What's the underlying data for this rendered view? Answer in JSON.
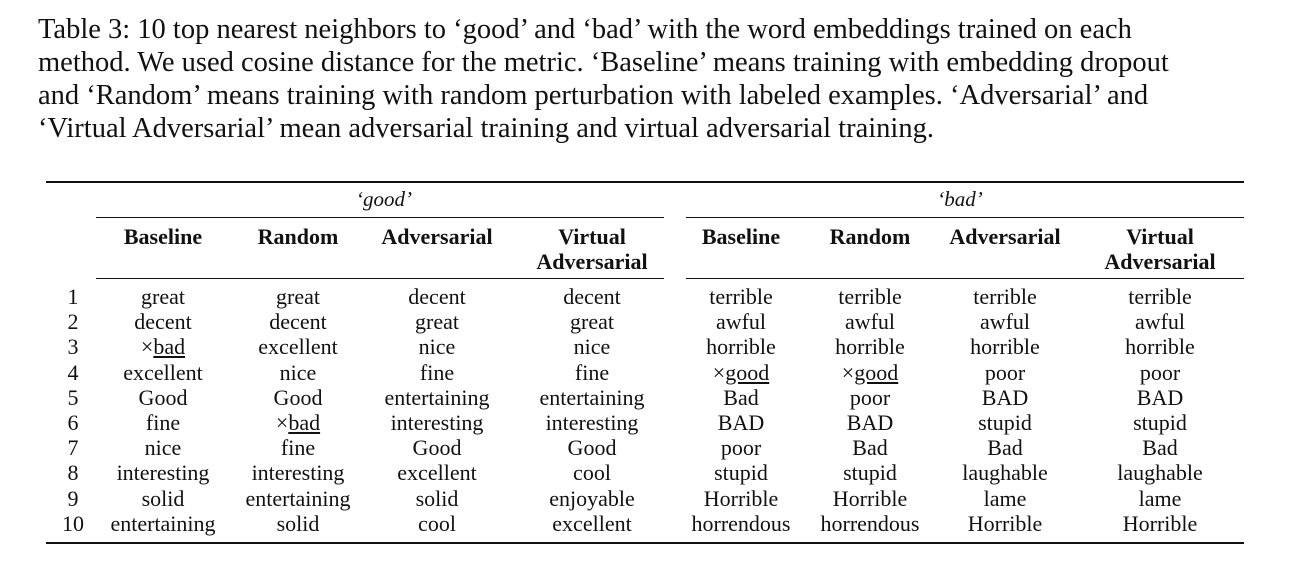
{
  "caption": {
    "line1": "Table 3: 10 top nearest neighbors to ‘good’ and ‘bad’ with the word embeddings trained on each",
    "line2": "method. We used cosine distance for the metric. ‘Baseline’ means training with embedding dropout",
    "line3": "and ‘Random’ means training with random perturbation with labeled examples. ‘Adversarial’ and",
    "line4": "‘Virtual Adversarial’ mean adversarial training and virtual adversarial training."
  },
  "table": {
    "groups": [
      "‘good’",
      "‘bad’"
    ],
    "columns": [
      {
        "l1": "Baseline",
        "l2": ""
      },
      {
        "l1": "Random",
        "l2": ""
      },
      {
        "l1": "Adversarial",
        "l2": ""
      },
      {
        "l1": "Virtual",
        "l2": "Adversarial"
      },
      {
        "l1": "Baseline",
        "l2": ""
      },
      {
        "l1": "Random",
        "l2": ""
      },
      {
        "l1": "Adversarial",
        "l2": ""
      },
      {
        "l1": "Virtual",
        "l2": "Adversarial"
      }
    ],
    "row_numbers": [
      "1",
      "2",
      "3",
      "4",
      "5",
      "6",
      "7",
      "8",
      "9",
      "10"
    ],
    "rows": [
      [
        "great",
        "great",
        "decent",
        "decent",
        "terrible",
        "terrible",
        "terrible",
        "terrible"
      ],
      [
        "decent",
        "decent",
        "great",
        "great",
        "awful",
        "awful",
        "awful",
        "awful"
      ],
      [
        "×bad",
        "excellent",
        "nice",
        "nice",
        "horrible",
        "horrible",
        "horrible",
        "horrible"
      ],
      [
        "excellent",
        "nice",
        "fine",
        "fine",
        "×good",
        "×good",
        "poor",
        "poor"
      ],
      [
        "Good",
        "Good",
        "entertaining",
        "entertaining",
        "Bad",
        "poor",
        "BAD",
        "BAD"
      ],
      [
        "fine",
        "×bad",
        "interesting",
        "interesting",
        "BAD",
        "BAD",
        "stupid",
        "stupid"
      ],
      [
        "nice",
        "fine",
        "Good",
        "Good",
        "poor",
        "Bad",
        "Bad",
        "Bad"
      ],
      [
        "interesting",
        "interesting",
        "excellent",
        "cool",
        "stupid",
        "stupid",
        "laughable",
        "laughable"
      ],
      [
        "solid",
        "entertaining",
        "solid",
        "enjoyable",
        "Horrible",
        "Horrible",
        "lame",
        "lame"
      ],
      [
        "entertaining",
        "solid",
        "cool",
        "excellent",
        "horrendous",
        "horrendous",
        "Horrible",
        "Horrible"
      ]
    ]
  }
}
